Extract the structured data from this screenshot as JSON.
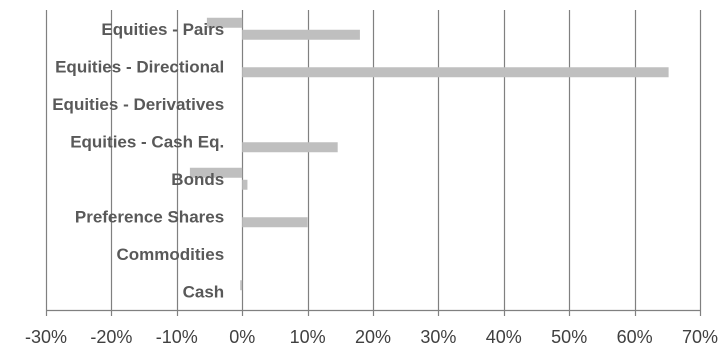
{
  "chart_data": {
    "type": "bar",
    "orientation": "horizontal",
    "title": "",
    "xlabel": "",
    "ylabel": "",
    "categories": [
      "Equities - Pairs",
      "Equities - Directional",
      "Equities - Derivatives",
      "Equities - Cash Eq.",
      "Bonds",
      "Preference Shares",
      "Commodities",
      "Cash"
    ],
    "series": [
      {
        "values": [
          18,
          65.2,
          0,
          14.6,
          0.8,
          10,
          0,
          0
        ]
      },
      {
        "values": [
          -5.4,
          0,
          0,
          0,
          -8,
          0,
          0,
          -0.3
        ]
      }
    ],
    "xlim": [
      -30,
      70
    ],
    "xticks": [
      -30,
      -20,
      -10,
      0,
      10,
      20,
      30,
      40,
      50,
      60,
      70
    ],
    "tick_labels": [
      "-30%",
      "-20%",
      "-10%",
      "0%",
      "10%",
      "20%",
      "30%",
      "40%",
      "50%",
      "60%",
      "70%"
    ],
    "grid": "vertical",
    "legend": "none",
    "bar_color": "#bfbfbf",
    "grid_color": "#808080"
  }
}
